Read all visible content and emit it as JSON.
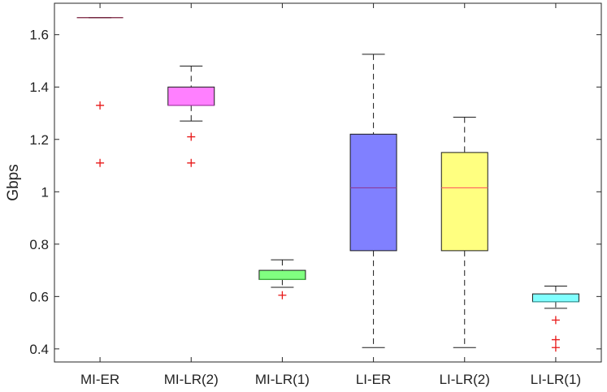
{
  "chart_data": {
    "type": "boxplot",
    "title": "",
    "xlabel": "",
    "ylabel": "Gbps",
    "ylim": [
      0.35,
      1.72
    ],
    "yticks": [
      0.4,
      0.6,
      0.8,
      1.0,
      1.2,
      1.4,
      1.6
    ],
    "ytick_labels": [
      "0.4",
      "0.6",
      "0.8",
      "1",
      "1.2",
      "1.4",
      "1.6"
    ],
    "categories": [
      "MI-ER",
      "MI-LR(2)",
      "MI-LR(1)",
      "LI-ER",
      "LI-LR(2)",
      "LI-LR(1)"
    ],
    "boxes": [
      {
        "label": "MI-ER",
        "whisker_low": 1.665,
        "q1": 1.665,
        "median": 1.665,
        "q3": 1.665,
        "whisker_high": 1.665,
        "outliers": [
          1.33,
          1.11
        ],
        "fill": "#ffffff",
        "median_color": "#7a1f3d"
      },
      {
        "label": "MI-LR(2)",
        "whisker_low": 1.27,
        "q1": 1.33,
        "median": 1.33,
        "q3": 1.4,
        "whisker_high": 1.48,
        "outliers": [
          1.21,
          1.11
        ],
        "fill": "#ff80ff",
        "median_color": "#c040c0"
      },
      {
        "label": "MI-LR(1)",
        "whisker_low": 0.635,
        "q1": 0.665,
        "median": 0.665,
        "q3": 0.7,
        "whisker_high": 0.74,
        "outliers": [
          0.605
        ],
        "fill": "#80ff80",
        "median_color": "#40b040"
      },
      {
        "label": "LI-ER",
        "whisker_low": 0.405,
        "q1": 0.775,
        "median": 1.015,
        "q3": 1.22,
        "whisker_high": 1.525,
        "outliers": [],
        "fill": "#8080ff",
        "median_color": "#8a3a9a"
      },
      {
        "label": "LI-LR(2)",
        "whisker_low": 0.405,
        "q1": 0.775,
        "median": 1.015,
        "q3": 1.15,
        "whisker_high": 1.285,
        "outliers": [],
        "fill": "#ffff80",
        "median_color": "#ff6060"
      },
      {
        "label": "LI-LR(1)",
        "whisker_low": 0.555,
        "q1": 0.58,
        "median": 0.58,
        "q3": 0.61,
        "whisker_high": 0.64,
        "outliers": [
          0.51,
          0.435,
          0.405
        ],
        "fill": "#80ffff",
        "median_color": "#40b0b0"
      }
    ],
    "outlier_color": "#e81818",
    "box_edge_color": "#1a1a1a",
    "grid": false,
    "legend": "none"
  }
}
